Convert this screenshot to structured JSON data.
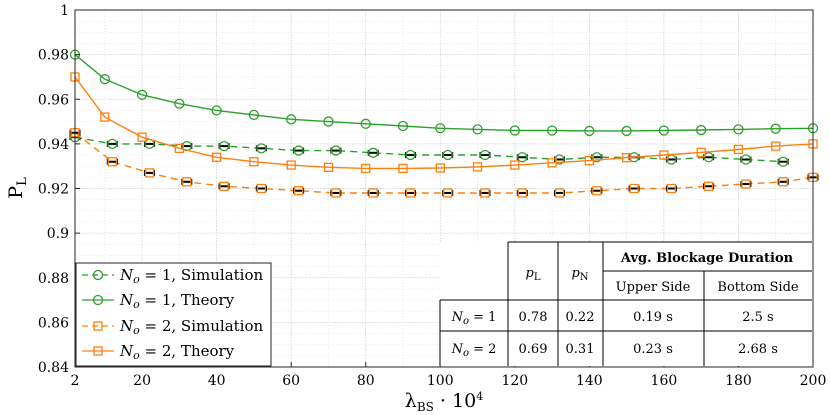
{
  "chart_data": {
    "type": "line",
    "title": "",
    "xlabel": "λBS · 10^4",
    "ylabel": "PL",
    "xlim": [
      2,
      200
    ],
    "ylim": [
      0.84,
      1.0
    ],
    "grid": true,
    "x_ticks": [
      "2",
      "20",
      "40",
      "60",
      "80",
      "100",
      "120",
      "140",
      "160",
      "180",
      "200"
    ],
    "y_ticks": [
      "0.84",
      "0.86",
      "0.88",
      "0.9",
      "0.92",
      "0.94",
      "0.96",
      "0.98",
      "1"
    ],
    "legend_position": "bottom-left",
    "colors": {
      "green": "#2ca02c",
      "orange": "#ff7f0e"
    },
    "series": [
      {
        "name": "N_o = 1, Simulation",
        "style": "dashed-circle",
        "color": "#2ca02c",
        "x": [
          2,
          12,
          22,
          32,
          42,
          52,
          62,
          72,
          82,
          92,
          102,
          112,
          122,
          132,
          142,
          152,
          162,
          172,
          182,
          192
        ],
        "y": [
          0.943,
          0.94,
          0.94,
          0.939,
          0.939,
          0.938,
          0.937,
          0.937,
          0.936,
          0.935,
          0.935,
          0.935,
          0.934,
          0.933,
          0.934,
          0.934,
          0.933,
          0.934,
          0.933,
          0.932
        ]
      },
      {
        "name": "N_o = 1, Theory",
        "style": "solid-circle",
        "color": "#2ca02c",
        "x": [
          2,
          10,
          20,
          30,
          40,
          50,
          60,
          70,
          80,
          90,
          100,
          110,
          120,
          130,
          140,
          150,
          160,
          170,
          180,
          190,
          200
        ],
        "y": [
          0.98,
          0.969,
          0.962,
          0.958,
          0.955,
          0.953,
          0.951,
          0.95,
          0.949,
          0.948,
          0.947,
          0.9465,
          0.946,
          0.946,
          0.9458,
          0.9458,
          0.946,
          0.9462,
          0.9465,
          0.9468,
          0.947
        ]
      },
      {
        "name": "N_o = 2, Simulation",
        "style": "dashed-square",
        "color": "#ff7f0e",
        "x": [
          2,
          12,
          22,
          32,
          42,
          52,
          62,
          72,
          82,
          92,
          102,
          112,
          122,
          132,
          142,
          152,
          162,
          172,
          182,
          192,
          200
        ],
        "y": [
          0.945,
          0.932,
          0.927,
          0.923,
          0.921,
          0.92,
          0.919,
          0.918,
          0.918,
          0.918,
          0.918,
          0.918,
          0.918,
          0.918,
          0.919,
          0.92,
          0.92,
          0.921,
          0.922,
          0.923,
          0.925
        ]
      },
      {
        "name": "N_o = 2, Theory",
        "style": "solid-square",
        "color": "#ff7f0e",
        "x": [
          2,
          10,
          20,
          30,
          40,
          50,
          60,
          70,
          80,
          90,
          100,
          110,
          120,
          130,
          140,
          150,
          160,
          170,
          180,
          190,
          200
        ],
        "y": [
          0.97,
          0.952,
          0.943,
          0.938,
          0.934,
          0.932,
          0.9305,
          0.9295,
          0.929,
          0.929,
          0.9292,
          0.9297,
          0.9305,
          0.9315,
          0.9325,
          0.9338,
          0.935,
          0.9362,
          0.9375,
          0.939,
          0.94
        ]
      }
    ]
  },
  "legend": {
    "items": [
      "N_o = 1, Simulation",
      "N_o = 1, Theory",
      "N_o = 2, Simulation",
      "N_o = 2, Theory"
    ]
  },
  "table": {
    "col_pl": "pL",
    "col_pn": "pN",
    "group_header": "Avg. Blockage Duration",
    "sub_upper": "Upper Side",
    "sub_bottom": "Bottom Side",
    "rows": [
      {
        "label": "N_o = 1",
        "pl": "0.78",
        "pn": "0.22",
        "upper": "0.19 s",
        "bottom": "2.5 s"
      },
      {
        "label": "N_o = 2",
        "pl": "0.69",
        "pn": "0.31",
        "upper": "0.23 s",
        "bottom": "2.68 s"
      }
    ]
  }
}
